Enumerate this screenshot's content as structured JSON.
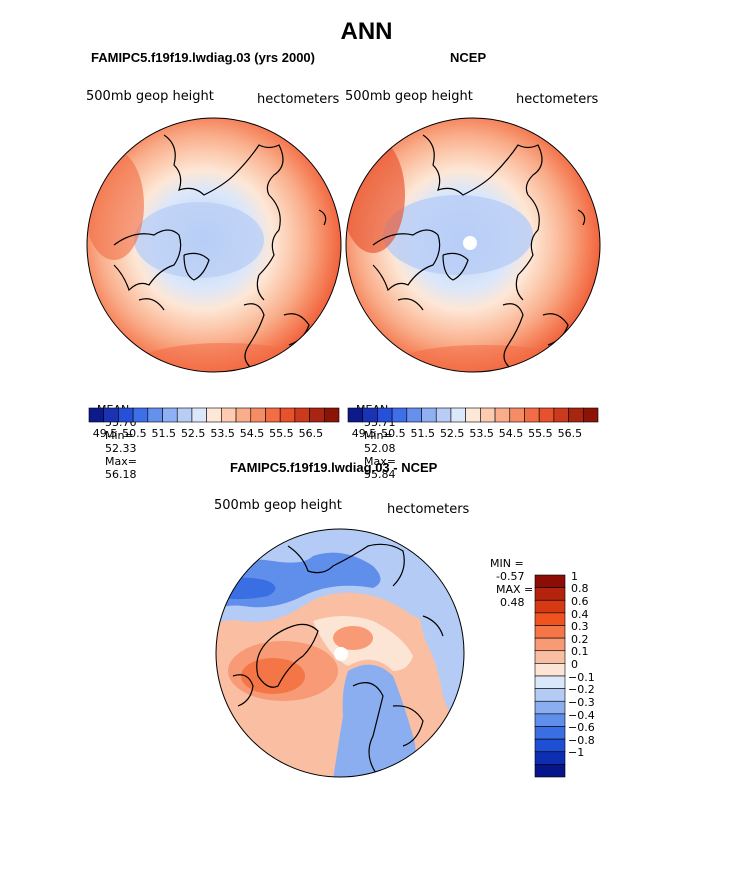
{
  "title": "ANN",
  "panels": [
    {
      "name": "model",
      "case": "FAMIPC5.f19f19.lwdiag.03 (yrs 2000)",
      "variable": "500mb geop height",
      "units": "hectometers",
      "stats": {
        "mean_label": "MEAN=",
        "mean": "53.76",
        "min_label": "Min=",
        "min": "52.33",
        "max_label": "Max=",
        "max": "56.18"
      }
    },
    {
      "name": "obs",
      "case": "NCEP",
      "variable": "500mb geop height",
      "units": "hectometers",
      "stats": {
        "mean_label": "MEAN=",
        "mean": "53.71",
        "min_label": "Min=",
        "min": "52.08",
        "max_label": "Max=",
        "max": "55.84"
      }
    }
  ],
  "abs_colorbar": {
    "labels": [
      "49.5",
      "50.5",
      "51.5",
      "52.5",
      "53.5",
      "54.5",
      "55.5",
      "56.5"
    ],
    "colors": [
      "#0d1a8c",
      "#1a33b3",
      "#2650d9",
      "#3f6fe8",
      "#6690ee",
      "#8fb0f2",
      "#b8cdf6",
      "#dbe7fa",
      "#fde7d6",
      "#fccbb0",
      "#f9ad8a",
      "#f68c65",
      "#f26c45",
      "#e8512c",
      "#cc3a1d",
      "#a82512",
      "#8c1407"
    ]
  },
  "diff_panel": {
    "case": "FAMIPC5.f19f19.lwdiag.03 - NCEP",
    "variable": "500mb geop height",
    "units": "hectometers",
    "min_label": "MIN =",
    "min": "-0.57",
    "max_label": "MAX =",
    "max": "0.48"
  },
  "diff_colorbar": {
    "labels": [
      "1",
      "0.8",
      "0.6",
      "0.4",
      "0.3",
      "0.2",
      "0.1",
      "0",
      "−0.1",
      "−0.2",
      "−0.3",
      "−0.4",
      "−0.6",
      "−0.8",
      "−1"
    ],
    "colors": [
      "#8c0d05",
      "#b3230e",
      "#d63a14",
      "#f0541e",
      "#f47545",
      "#f79a75",
      "#fabfa3",
      "#fde5d6",
      "#dbe8fa",
      "#b3cbf5",
      "#8aaef0",
      "#5f8fea",
      "#3a6fe3",
      "#1f4fd4",
      "#0d2eb0",
      "#06168a"
    ]
  }
}
